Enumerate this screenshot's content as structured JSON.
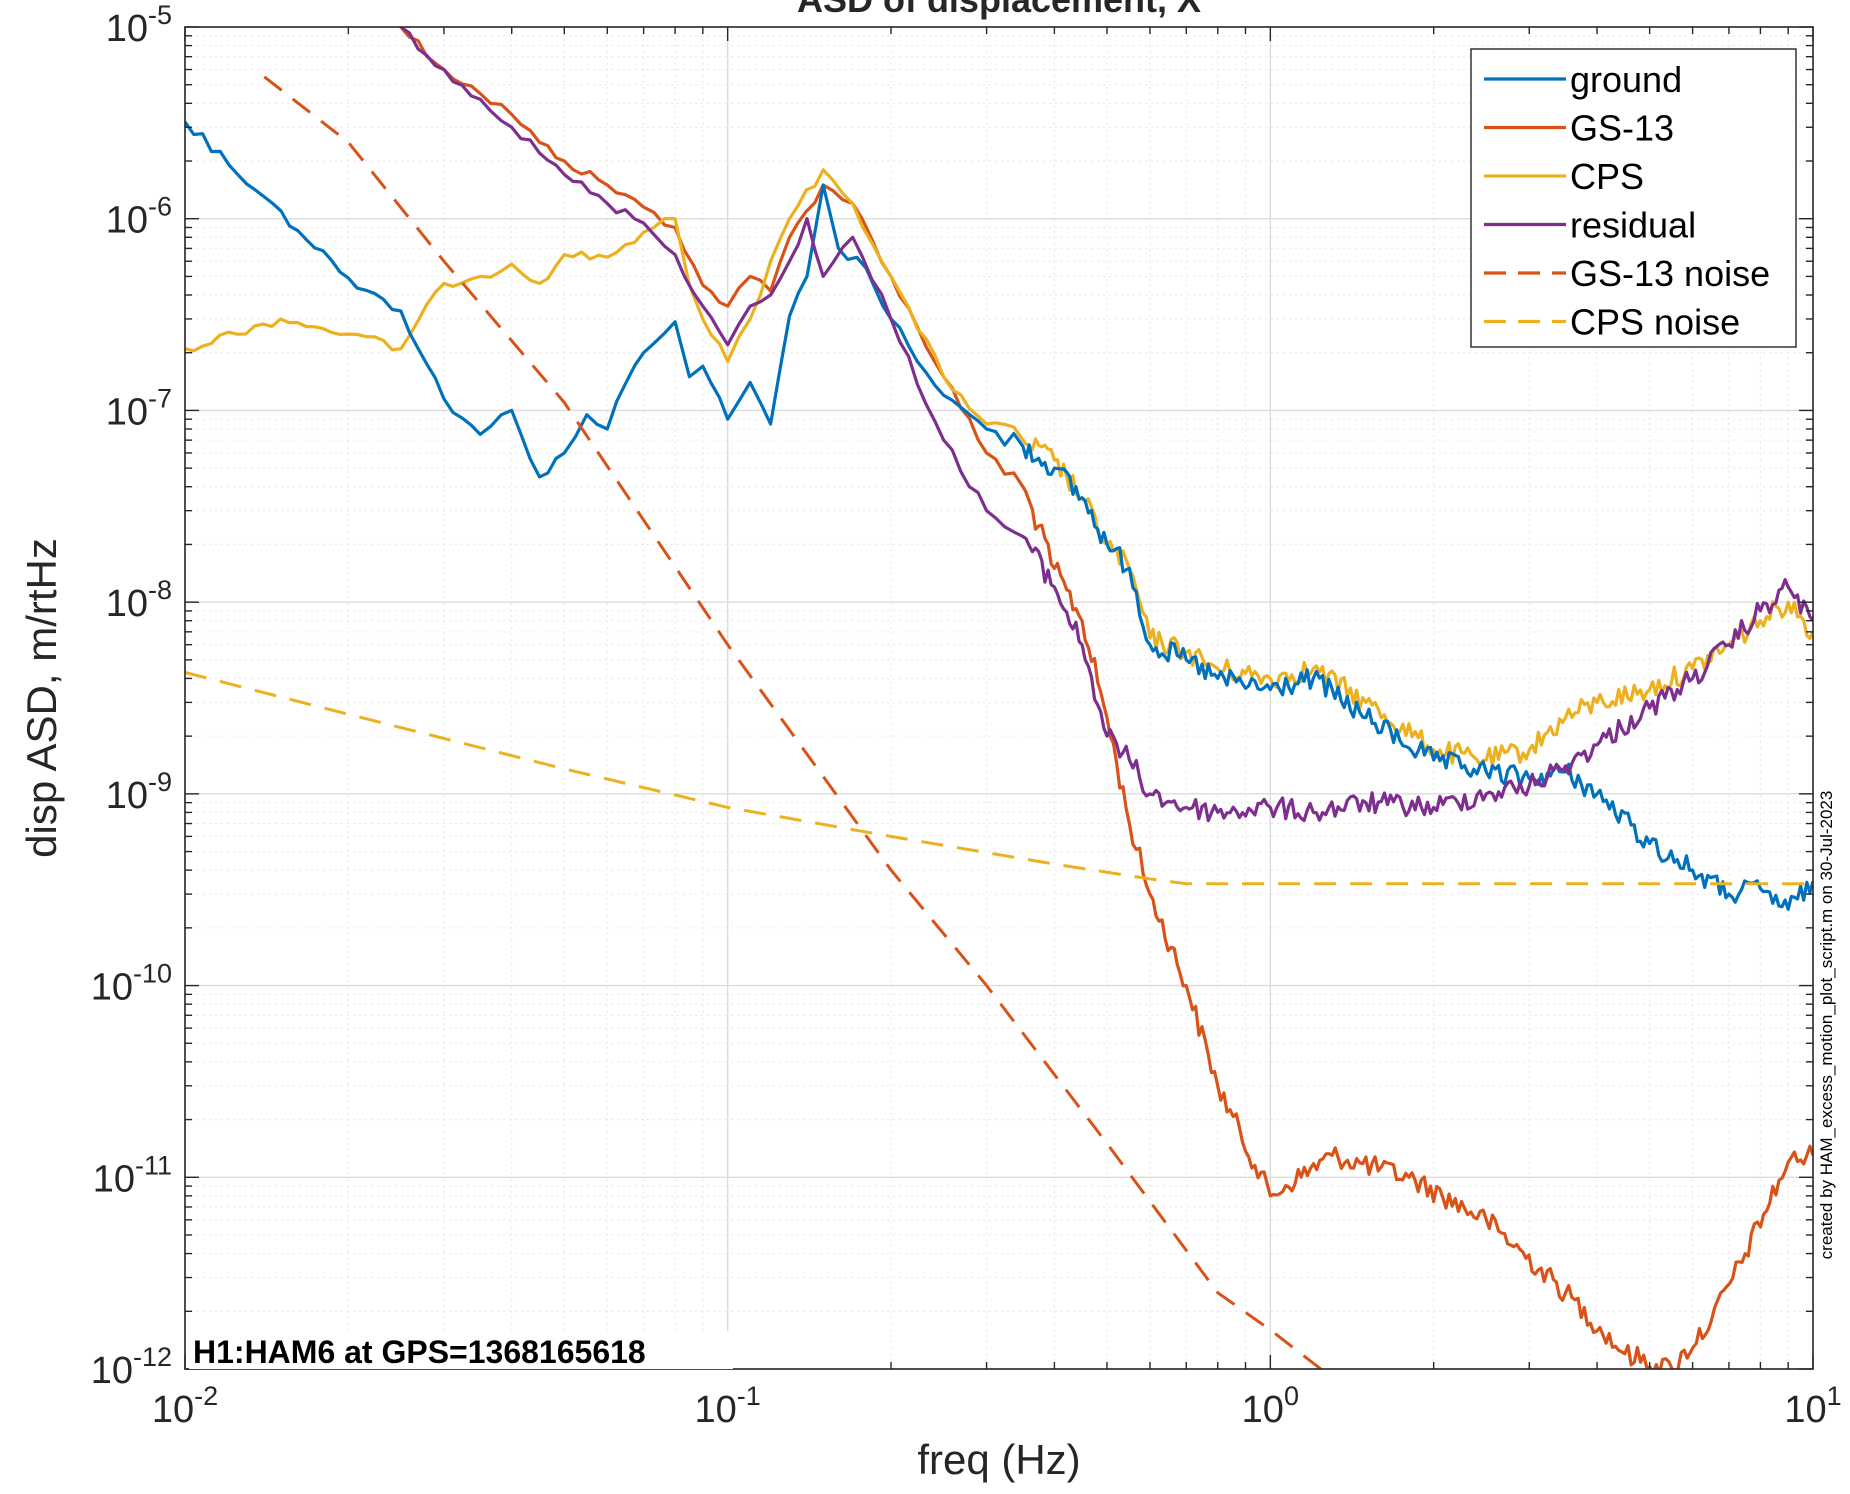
{
  "chart_data": {
    "type": "line",
    "title": "ASD of displacement, X",
    "xlabel": "freq (Hz)",
    "ylabel": "disp ASD, m/rtHz",
    "xscale": "log",
    "yscale": "log",
    "xlim": [
      0.01,
      10
    ],
    "ylim": [
      1e-12,
      1e-05
    ],
    "grid": "major and minor",
    "legend_position": "top-right",
    "x_ticks": [
      {
        "base": "10",
        "exp": "-2"
      },
      {
        "base": "10",
        "exp": "-1"
      },
      {
        "base": "10",
        "exp": "0"
      },
      {
        "base": "10",
        "exp": "1"
      }
    ],
    "y_ticks": [
      {
        "base": "10",
        "exp": "-12"
      },
      {
        "base": "10",
        "exp": "-11"
      },
      {
        "base": "10",
        "exp": "-10"
      },
      {
        "base": "10",
        "exp": "-9"
      },
      {
        "base": "10",
        "exp": "-8"
      },
      {
        "base": "10",
        "exp": "-7"
      },
      {
        "base": "10",
        "exp": "-6"
      },
      {
        "base": "10",
        "exp": "-5"
      }
    ],
    "annotation": "H1:HAM6 at GPS=1368165618",
    "credit": "created by HAM_excess_motion_plot_script.m on 30-Jul-2023",
    "series": [
      {
        "name": "ground",
        "color": "#0072BD",
        "dash": "solid",
        "points": [
          [
            0.01,
            3.2e-06
          ],
          [
            0.014,
            1.3e-06
          ],
          [
            0.02,
            4.9e-07
          ],
          [
            0.025,
            3.3e-07
          ],
          [
            0.03,
            1.15e-07
          ],
          [
            0.035,
            7.5e-08
          ],
          [
            0.04,
            1e-07
          ],
          [
            0.045,
            4.5e-08
          ],
          [
            0.05,
            6e-08
          ],
          [
            0.055,
            9.5e-08
          ],
          [
            0.06,
            8e-08
          ],
          [
            0.065,
            1.4e-07
          ],
          [
            0.07,
            2e-07
          ],
          [
            0.08,
            2.9e-07
          ],
          [
            0.085,
            1.5e-07
          ],
          [
            0.09,
            1.7e-07
          ],
          [
            0.1,
            9e-08
          ],
          [
            0.11,
            1.4e-07
          ],
          [
            0.12,
            8.5e-08
          ],
          [
            0.13,
            3.1e-07
          ],
          [
            0.14,
            5e-07
          ],
          [
            0.15,
            1.5e-06
          ],
          [
            0.16,
            7e-07
          ],
          [
            0.18,
            5.5e-07
          ],
          [
            0.2,
            3e-07
          ],
          [
            0.25,
            1.2e-07
          ],
          [
            0.3,
            8e-08
          ],
          [
            0.35,
            6.5e-08
          ],
          [
            0.4,
            5e-08
          ],
          [
            0.45,
            3.5e-08
          ],
          [
            0.5,
            2e-08
          ],
          [
            0.55,
            1.5e-08
          ],
          [
            0.6,
            6e-09
          ],
          [
            0.7,
            5e-09
          ],
          [
            0.8,
            4e-09
          ],
          [
            1.0,
            3.5e-09
          ],
          [
            1.2,
            4e-09
          ],
          [
            1.5,
            2.5e-09
          ],
          [
            2.0,
            1.5e-09
          ],
          [
            2.5,
            1.3e-09
          ],
          [
            3.0,
            1.2e-09
          ],
          [
            3.5,
            1.3e-09
          ],
          [
            4.0,
            1e-09
          ],
          [
            5.0,
            5.5e-10
          ],
          [
            6.0,
            4e-10
          ],
          [
            7.0,
            3e-10
          ],
          [
            8.0,
            3.2e-10
          ],
          [
            9.0,
            2.5e-10
          ],
          [
            10,
            3.5e-10
          ]
        ]
      },
      {
        "name": "GS-13",
        "color": "#D95319",
        "dash": "solid",
        "points": [
          [
            0.02,
            2e-05
          ],
          [
            0.025,
            1e-05
          ],
          [
            0.03,
            6e-06
          ],
          [
            0.035,
            4.5e-06
          ],
          [
            0.04,
            3.5e-06
          ],
          [
            0.045,
            2.5e-06
          ],
          [
            0.05,
            2e-06
          ],
          [
            0.06,
            1.5e-06
          ],
          [
            0.07,
            1.15e-06
          ],
          [
            0.08,
            9e-07
          ],
          [
            0.09,
            4.5e-07
          ],
          [
            0.1,
            3.5e-07
          ],
          [
            0.11,
            5e-07
          ],
          [
            0.12,
            4.2e-07
          ],
          [
            0.13,
            8e-07
          ],
          [
            0.15,
            1.5e-06
          ],
          [
            0.17,
            1.2e-06
          ],
          [
            0.2,
            5e-07
          ],
          [
            0.25,
            1.5e-07
          ],
          [
            0.3,
            6e-08
          ],
          [
            0.35,
            4e-08
          ],
          [
            0.4,
            1.5e-08
          ],
          [
            0.45,
            8e-09
          ],
          [
            0.5,
            2.5e-09
          ],
          [
            0.55,
            7e-10
          ],
          [
            0.6,
            3e-10
          ],
          [
            0.7,
            1e-10
          ],
          [
            0.8,
            3e-11
          ],
          [
            1.0,
            8e-12
          ],
          [
            1.3,
            1.3e-11
          ],
          [
            1.8,
            1e-11
          ],
          [
            2.5,
            6e-12
          ],
          [
            3.5,
            2.5e-12
          ],
          [
            4.5,
            1.2e-12
          ],
          [
            5.5,
            1e-12
          ],
          [
            6.5,
            1.8e-12
          ],
          [
            7.5,
            4e-12
          ],
          [
            9.0,
            1.2e-11
          ],
          [
            10,
            1.3e-11
          ]
        ]
      },
      {
        "name": "CPS",
        "color": "#EDB120",
        "dash": "solid",
        "points": [
          [
            0.01,
            2.1e-07
          ],
          [
            0.015,
            3e-07
          ],
          [
            0.02,
            2.5e-07
          ],
          [
            0.025,
            2.1e-07
          ],
          [
            0.03,
            4.6e-07
          ],
          [
            0.035,
            5e-07
          ],
          [
            0.04,
            5.8e-07
          ],
          [
            0.045,
            4.6e-07
          ],
          [
            0.05,
            6.5e-07
          ],
          [
            0.06,
            6.3e-07
          ],
          [
            0.07,
            8.5e-07
          ],
          [
            0.08,
            1e-06
          ],
          [
            0.085,
            4.5e-07
          ],
          [
            0.09,
            3e-07
          ],
          [
            0.1,
            1.8e-07
          ],
          [
            0.11,
            3e-07
          ],
          [
            0.12,
            6e-07
          ],
          [
            0.13,
            1e-06
          ],
          [
            0.15,
            1.8e-06
          ],
          [
            0.17,
            1.2e-06
          ],
          [
            0.2,
            5e-07
          ],
          [
            0.25,
            1.5e-07
          ],
          [
            0.3,
            8.5e-08
          ],
          [
            0.35,
            7e-08
          ],
          [
            0.4,
            5.5e-08
          ],
          [
            0.45,
            3.5e-08
          ],
          [
            0.5,
            2e-08
          ],
          [
            0.55,
            1.5e-08
          ],
          [
            0.6,
            6.5e-09
          ],
          [
            0.7,
            5.5e-09
          ],
          [
            0.8,
            4.5e-09
          ],
          [
            1.0,
            4e-09
          ],
          [
            1.2,
            4.5e-09
          ],
          [
            1.5,
            3e-09
          ],
          [
            2.0,
            1.7e-09
          ],
          [
            2.5,
            1.5e-09
          ],
          [
            3.0,
            1.7e-09
          ],
          [
            3.5,
            2.5e-09
          ],
          [
            4.0,
            3e-09
          ],
          [
            5.0,
            3.5e-09
          ],
          [
            6.0,
            4.5e-09
          ],
          [
            7.0,
            6e-09
          ],
          [
            8.0,
            8e-09
          ],
          [
            9.0,
            1e-08
          ],
          [
            10,
            7e-09
          ]
        ]
      },
      {
        "name": "residual",
        "color": "#7E2F8E",
        "dash": "solid",
        "points": [
          [
            0.02,
            2e-05
          ],
          [
            0.025,
            1e-05
          ],
          [
            0.03,
            6e-06
          ],
          [
            0.035,
            4.2e-06
          ],
          [
            0.04,
            3e-06
          ],
          [
            0.045,
            2.2e-06
          ],
          [
            0.05,
            1.7e-06
          ],
          [
            0.06,
            1.2e-06
          ],
          [
            0.07,
            9.5e-07
          ],
          [
            0.08,
            6.5e-07
          ],
          [
            0.09,
            3.5e-07
          ],
          [
            0.1,
            2.2e-07
          ],
          [
            0.11,
            3.5e-07
          ],
          [
            0.12,
            4e-07
          ],
          [
            0.13,
            6e-07
          ],
          [
            0.14,
            1e-06
          ],
          [
            0.15,
            5e-07
          ],
          [
            0.17,
            8e-07
          ],
          [
            0.2,
            3e-07
          ],
          [
            0.25,
            7e-08
          ],
          [
            0.3,
            3e-08
          ],
          [
            0.35,
            2.2e-08
          ],
          [
            0.4,
            1.2e-08
          ],
          [
            0.45,
            6e-09
          ],
          [
            0.5,
            2e-09
          ],
          [
            0.55,
            1.5e-09
          ],
          [
            0.6,
            1e-09
          ],
          [
            0.7,
            8.5e-10
          ],
          [
            0.8,
            8e-10
          ],
          [
            1.0,
            8.5e-10
          ],
          [
            1.2,
            8e-10
          ],
          [
            1.5,
            9e-10
          ],
          [
            2.0,
            8.5e-10
          ],
          [
            2.5,
            1e-09
          ],
          [
            3.0,
            1.1e-09
          ],
          [
            3.5,
            1.4e-09
          ],
          [
            4.0,
            1.8e-09
          ],
          [
            5.0,
            2.8e-09
          ],
          [
            6.0,
            4e-09
          ],
          [
            7.0,
            6e-09
          ],
          [
            8.0,
            9e-09
          ],
          [
            9.0,
            1.2e-08
          ],
          [
            10,
            8e-09
          ]
        ]
      },
      {
        "name": "GS-13 noise",
        "color": "#D95319",
        "dash": "dashed",
        "points": [
          [
            0.014,
            5.5e-06
          ],
          [
            0.02,
            2.5e-06
          ],
          [
            0.03,
            6e-07
          ],
          [
            0.05,
            1.1e-07
          ],
          [
            0.1,
            6e-09
          ],
          [
            0.2,
            4e-10
          ],
          [
            0.3,
            1e-10
          ],
          [
            0.5,
            1.5e-11
          ],
          [
            0.8,
            2.5e-12
          ],
          [
            1.0,
            1.6e-12
          ],
          [
            1.3,
            9e-13
          ]
        ]
      },
      {
        "name": "CPS noise",
        "color": "#EDB120",
        "dash": "dashed",
        "points": [
          [
            0.01,
            4.3e-09
          ],
          [
            0.02,
            2.6e-09
          ],
          [
            0.05,
            1.35e-09
          ],
          [
            0.1,
            8.5e-10
          ],
          [
            0.2,
            6e-10
          ],
          [
            0.4,
            4.3e-10
          ],
          [
            0.6,
            3.6e-10
          ],
          [
            0.7,
            3.4e-10
          ],
          [
            1.0,
            3.4e-10
          ],
          [
            10,
            3.4e-10
          ]
        ]
      }
    ]
  }
}
